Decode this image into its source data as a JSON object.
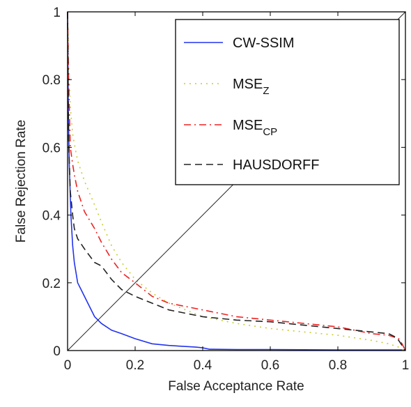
{
  "chart_data": {
    "type": "line",
    "title": "",
    "xlabel": "False Acceptance Rate",
    "ylabel": "False Rejection Rate",
    "xlim": [
      0,
      1
    ],
    "ylim": [
      0,
      1
    ],
    "xticks": [
      "0",
      "0.2",
      "0.4",
      "0.6",
      "0.8",
      "1"
    ],
    "yticks": [
      "0",
      "0.2",
      "0.4",
      "0.6",
      "0.8",
      "1"
    ],
    "grid": false,
    "legend_position": "top-right",
    "series": [
      {
        "name": "CW-SSIM",
        "legend_main": "CW-SSIM",
        "legend_sub": "",
        "color": "#2233ee",
        "dash": "solid",
        "x": [
          0.0,
          0.002,
          0.005,
          0.01,
          0.015,
          0.02,
          0.03,
          0.04,
          0.06,
          0.08,
          0.1,
          0.13,
          0.16,
          0.2,
          0.25,
          0.3,
          0.35,
          0.38,
          0.4,
          0.42,
          0.5,
          0.6,
          0.8,
          1.0
        ],
        "y": [
          1.0,
          0.72,
          0.55,
          0.4,
          0.31,
          0.26,
          0.2,
          0.18,
          0.14,
          0.1,
          0.08,
          0.06,
          0.05,
          0.035,
          0.02,
          0.015,
          0.012,
          0.01,
          0.008,
          0.004,
          0.003,
          0.003,
          0.002,
          0.002
        ]
      },
      {
        "name": "MSEZ",
        "legend_main": "MSE",
        "legend_sub": "Z",
        "color": "#c8cc30",
        "dash": "dot",
        "x": [
          0.0,
          0.003,
          0.008,
          0.015,
          0.02,
          0.03,
          0.05,
          0.08,
          0.1,
          0.13,
          0.16,
          0.2,
          0.25,
          0.3,
          0.4,
          0.5,
          0.6,
          0.7,
          0.8,
          0.9,
          0.95,
          0.98,
          0.99,
          1.0
        ],
        "y": [
          1.0,
          0.85,
          0.72,
          0.64,
          0.61,
          0.56,
          0.5,
          0.43,
          0.38,
          0.31,
          0.26,
          0.21,
          0.17,
          0.14,
          0.1,
          0.08,
          0.065,
          0.055,
          0.045,
          0.03,
          0.02,
          0.01,
          0.003,
          0.0
        ]
      },
      {
        "name": "MSECP",
        "legend_main": "MSE",
        "legend_sub": "CP",
        "color": "#ee2222",
        "dash": "dashdot",
        "x": [
          0.0,
          0.003,
          0.008,
          0.015,
          0.02,
          0.03,
          0.05,
          0.08,
          0.1,
          0.13,
          0.16,
          0.2,
          0.25,
          0.3,
          0.4,
          0.5,
          0.6,
          0.7,
          0.8,
          0.9,
          0.95,
          0.98,
          0.99,
          1.0
        ],
        "y": [
          1.0,
          0.8,
          0.6,
          0.55,
          0.52,
          0.47,
          0.41,
          0.36,
          0.32,
          0.27,
          0.23,
          0.2,
          0.16,
          0.14,
          0.12,
          0.1,
          0.09,
          0.08,
          0.07,
          0.05,
          0.045,
          0.035,
          0.02,
          0.0
        ]
      },
      {
        "name": "HAUSDORFF",
        "legend_main": "HAUSDORFF",
        "legend_sub": "",
        "color": "#222222",
        "dash": "dash",
        "x": [
          0.0,
          0.003,
          0.008,
          0.015,
          0.02,
          0.03,
          0.05,
          0.08,
          0.1,
          0.13,
          0.16,
          0.2,
          0.25,
          0.3,
          0.4,
          0.5,
          0.6,
          0.7,
          0.8,
          0.9,
          0.95,
          0.97,
          0.98,
          1.0
        ],
        "y": [
          1.0,
          0.62,
          0.47,
          0.4,
          0.36,
          0.33,
          0.3,
          0.26,
          0.25,
          0.21,
          0.18,
          0.16,
          0.14,
          0.12,
          0.1,
          0.09,
          0.085,
          0.075,
          0.065,
          0.055,
          0.05,
          0.04,
          0.03,
          0.0
        ]
      },
      {
        "name": "",
        "legend_main": "",
        "legend_sub": "",
        "color": "#222222",
        "dash": "solid",
        "show_in_legend": false,
        "x": [
          0,
          1
        ],
        "y": [
          0,
          1
        ]
      }
    ]
  }
}
